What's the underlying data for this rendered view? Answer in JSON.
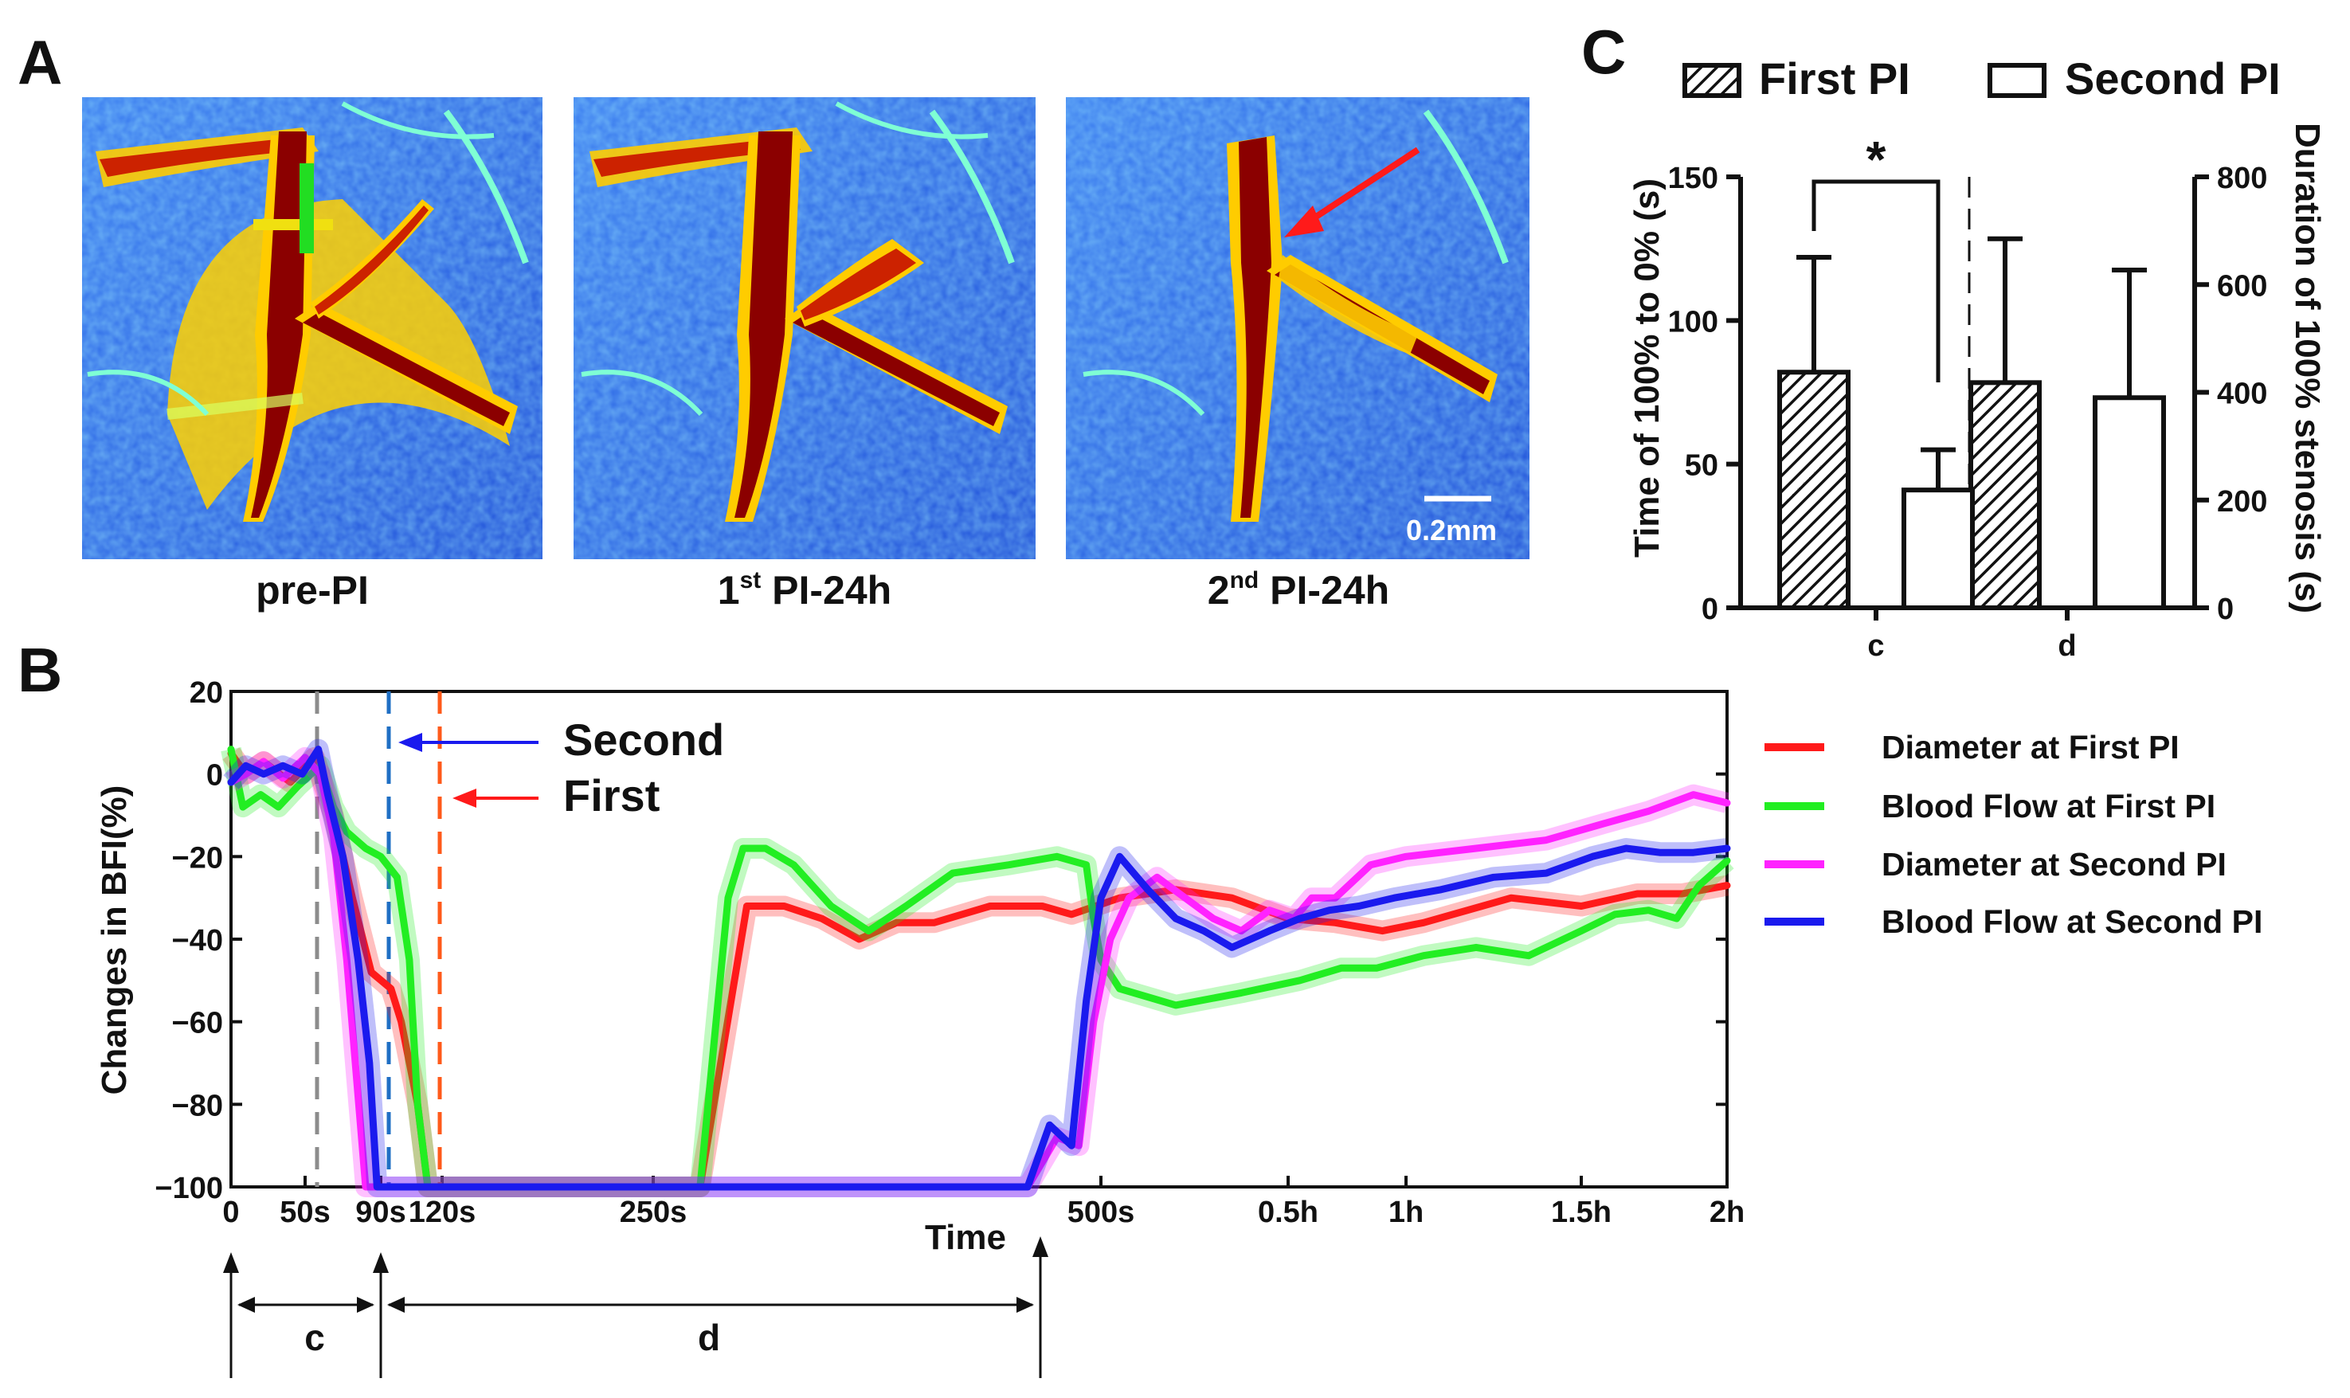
{
  "colors": {
    "red": "#ff1a1a",
    "green": "#22ee22",
    "magenta": "#ff22ff",
    "blue": "#1a1aee",
    "gray_line": "#8c8c8c",
    "blue_dash": "#1f6fc4",
    "orange_dash": "#ff5a1a",
    "tissue_bg": "#2a62e8",
    "vessel": "#8b0000"
  },
  "panel_a": {
    "letter": "A",
    "images": [
      {
        "caption": "pre-PI"
      },
      {
        "caption_num": "1",
        "caption_sup": "st",
        "caption_rest": " PI-24h"
      },
      {
        "caption_num": "2",
        "caption_sup": "nd",
        "caption_rest": " PI-24h"
      }
    ],
    "scale_bar": "0.2mm"
  },
  "panel_b": {
    "letter": "B",
    "ylabel": "Changes in BFI(%)",
    "xlabel": "Time",
    "annotation_second": "Second",
    "annotation_first": "First",
    "segment_c": "c",
    "segment_d": "d"
  },
  "panel_c": {
    "letter": "C",
    "legend_first": "First PI",
    "legend_second": "Second PI",
    "left_ylabel": "Time of 100% to 0% (s)",
    "right_ylabel": "Duration of 100% stenosis (s)",
    "significance": "*"
  },
  "chart_data": [
    {
      "id": "panel-b",
      "type": "line",
      "title": "",
      "xlabel": "Time",
      "ylabel": "Changes in BFI(%)",
      "ylim": [
        -100,
        20
      ],
      "yticks": [
        "20",
        "0",
        "−20",
        "−40",
        "−60",
        "−80",
        "−100"
      ],
      "xtick_labels": [
        "0",
        "50s",
        "90s",
        "120s",
        "250s",
        "500s",
        "0.5h",
        "1h",
        "1.5h",
        "2h"
      ],
      "x_scale_note": "segmented time axis (s then h)",
      "vertical_markers": [
        {
          "name": "gray-dash",
          "x_label": "~60s"
        },
        {
          "name": "second-dash",
          "x_label": "~95s"
        },
        {
          "name": "first-dash",
          "x_label": "~110s"
        }
      ],
      "series": [
        {
          "name": "Diameter at First PI",
          "color": "#ff1a1a",
          "points": [
            [
              0,
              5
            ],
            [
              10,
              0
            ],
            [
              22,
              3
            ],
            [
              40,
              -2
            ],
            [
              55,
              4
            ],
            [
              65,
              -10
            ],
            [
              75,
              -30
            ],
            [
              85,
              -48
            ],
            [
              95,
              -52
            ],
            [
              100,
              -60
            ],
            [
              108,
              -80
            ],
            [
              113,
              -100
            ],
            [
              250,
              -100
            ],
            [
              275,
              -100
            ],
            [
              300,
              -32
            ],
            [
              320,
              -32
            ],
            [
              340,
              -35
            ],
            [
              360,
              -40
            ],
            [
              380,
              -36
            ],
            [
              400,
              -36
            ],
            [
              430,
              -32
            ],
            [
              460,
              -32
            ],
            [
              480,
              -34
            ],
            [
              510,
              -30
            ],
            [
              540,
              -28
            ],
            [
              570,
              -30
            ],
            [
              600,
              -35
            ],
            [
              640,
              -36
            ],
            [
              680,
              -38
            ],
            [
              710,
              -36
            ],
            [
              760,
              -30
            ],
            [
              800,
              -32
            ],
            [
              850,
              -29
            ],
            [
              890,
              -29
            ],
            [
              930,
              -27
            ]
          ]
        },
        {
          "name": "Blood Flow at First PI",
          "color": "#22ee22",
          "points": [
            [
              0,
              6
            ],
            [
              8,
              -8
            ],
            [
              20,
              -5
            ],
            [
              32,
              -8
            ],
            [
              45,
              -3
            ],
            [
              58,
              2
            ],
            [
              65,
              -8
            ],
            [
              72,
              -14
            ],
            [
              82,
              -18
            ],
            [
              90,
              -20
            ],
            [
              98,
              -25
            ],
            [
              104,
              -45
            ],
            [
              108,
              -80
            ],
            [
              113,
              -100
            ],
            [
              250,
              -100
            ],
            [
              275,
              -100
            ],
            [
              290,
              -30
            ],
            [
              298,
              -18
            ],
            [
              310,
              -18
            ],
            [
              325,
              -22
            ],
            [
              345,
              -32
            ],
            [
              365,
              -38
            ],
            [
              385,
              -32
            ],
            [
              410,
              -24
            ],
            [
              440,
              -22
            ],
            [
              470,
              -20
            ],
            [
              490,
              -22
            ],
            [
              495,
              -35
            ],
            [
              500,
              -45
            ],
            [
              510,
              -52
            ],
            [
              540,
              -56
            ],
            [
              575,
              -53
            ],
            [
              610,
              -50
            ],
            [
              645,
              -47
            ],
            [
              675,
              -47
            ],
            [
              710,
              -44
            ],
            [
              740,
              -42
            ],
            [
              770,
              -44
            ],
            [
              800,
              -38
            ],
            [
              830,
              -34
            ],
            [
              860,
              -33
            ],
            [
              885,
              -35
            ],
            [
              905,
              -27
            ],
            [
              930,
              -21
            ]
          ]
        },
        {
          "name": "Diameter at Second PI",
          "color": "#ff22ff",
          "points": [
            [
              0,
              -2
            ],
            [
              10,
              0
            ],
            [
              22,
              3
            ],
            [
              35,
              -1
            ],
            [
              50,
              4
            ],
            [
              58,
              0
            ],
            [
              65,
              -15
            ],
            [
              72,
              -45
            ],
            [
              78,
              -78
            ],
            [
              82,
              -100
            ],
            [
              450,
              -100
            ],
            [
              470,
              -88
            ],
            [
              485,
              -90
            ],
            [
              495,
              -60
            ],
            [
              505,
              -40
            ],
            [
              515,
              -30
            ],
            [
              530,
              -25
            ],
            [
              545,
              -30
            ],
            [
              560,
              -35
            ],
            [
              575,
              -38
            ],
            [
              590,
              -33
            ],
            [
              605,
              -35
            ],
            [
              620,
              -30
            ],
            [
              640,
              -30
            ],
            [
              670,
              -22
            ],
            [
              700,
              -20
            ],
            [
              740,
              -18
            ],
            [
              780,
              -16
            ],
            [
              820,
              -12
            ],
            [
              860,
              -9
            ],
            [
              900,
              -5
            ],
            [
              930,
              -7
            ]
          ]
        },
        {
          "name": "Blood Flow at Second PI",
          "color": "#1a1aee",
          "points": [
            [
              0,
              -2
            ],
            [
              10,
              2
            ],
            [
              22,
              0
            ],
            [
              35,
              2
            ],
            [
              48,
              0
            ],
            [
              57,
              6
            ],
            [
              62,
              -5
            ],
            [
              70,
              -20
            ],
            [
              78,
              -45
            ],
            [
              84,
              -70
            ],
            [
              88,
              -100
            ],
            [
              450,
              -100
            ],
            [
              465,
              -85
            ],
            [
              480,
              -90
            ],
            [
              490,
              -55
            ],
            [
              500,
              -30
            ],
            [
              510,
              -20
            ],
            [
              525,
              -28
            ],
            [
              540,
              -35
            ],
            [
              555,
              -38
            ],
            [
              570,
              -42
            ],
            [
              590,
              -38
            ],
            [
              610,
              -35
            ],
            [
              635,
              -33
            ],
            [
              660,
              -32
            ],
            [
              690,
              -30
            ],
            [
              720,
              -28
            ],
            [
              750,
              -25
            ],
            [
              780,
              -24
            ],
            [
              810,
              -20
            ],
            [
              840,
              -18
            ],
            [
              870,
              -19
            ],
            [
              900,
              -19
            ],
            [
              930,
              -18
            ]
          ]
        }
      ]
    },
    {
      "id": "panel-c",
      "type": "bar",
      "categories": [
        "c",
        "d"
      ],
      "left_axis": {
        "label": "Time of 100% to 0% (s)",
        "ylim": [
          0,
          150
        ],
        "ticks": [
          "0",
          "50",
          "100",
          "150"
        ]
      },
      "right_axis": {
        "label": "Duration of 100% stenosis (s)",
        "ylim": [
          0,
          800
        ],
        "ticks": [
          "0",
          "200",
          "400",
          "600",
          "800"
        ]
      },
      "series": [
        {
          "name": "First PI",
          "pattern": "hatched",
          "values": [
            82,
            418
          ],
          "errors": [
            40,
            267
          ]
        },
        {
          "name": "Second PI",
          "pattern": "open",
          "values": [
            41,
            390
          ],
          "errors": [
            14,
            237
          ]
        }
      ],
      "value_axis_per_category": [
        "left",
        "right"
      ],
      "significance": {
        "between": "c",
        "label": "*"
      }
    }
  ]
}
